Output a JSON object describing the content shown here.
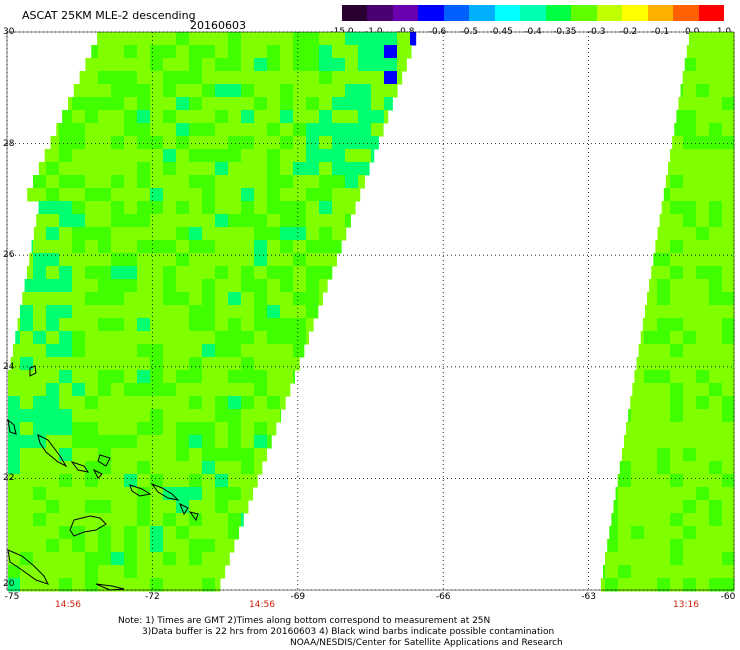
{
  "header": {
    "title": "ASCAT 25KM MLE-2 descending",
    "date": "20160603"
  },
  "colorbar": {
    "labels": [
      "-15.0",
      "-1.0",
      "-0.8",
      "-0.6",
      "-0.5",
      "-0.45",
      "-0.4",
      "-0.35",
      "-0.3",
      "-0.2",
      "-0.1",
      "0.0",
      "1.0"
    ],
    "colors": [
      "#2a0030",
      "#4a0070",
      "#6a00b0",
      "#0000ff",
      "#0060ff",
      "#00b0ff",
      "#00ffff",
      "#00ffb0",
      "#00ff40",
      "#60ff00",
      "#c0ff00",
      "#ffff00",
      "#ffb000",
      "#ff6000",
      "#ff0000"
    ]
  },
  "map": {
    "lon_ticks": [
      "-75",
      "-72",
      "-69",
      "-66",
      "-63",
      "-60"
    ],
    "lat_ticks": [
      "30",
      "28",
      "26",
      "24",
      "22",
      "20"
    ],
    "swath_times": [
      "14:56",
      "14:56",
      "13:16"
    ],
    "colors": {
      "green_light": "#80ff00",
      "green_mid": "#40ff00",
      "green_sea": "#00ff70",
      "cyan": "#00ffd0",
      "blue": "#0000ff",
      "grid": "#000000"
    }
  },
  "notes": {
    "line1": "Note: 1) Times are GMT 2)Times along bottom correspond to measurement at 25N",
    "line2": "3)Data buffer is 22 hrs from 20160603 4) Black wind barbs indicate possible contamination",
    "line3": "NOAA/NESDIS/Center for Satellite Applications and Research"
  }
}
